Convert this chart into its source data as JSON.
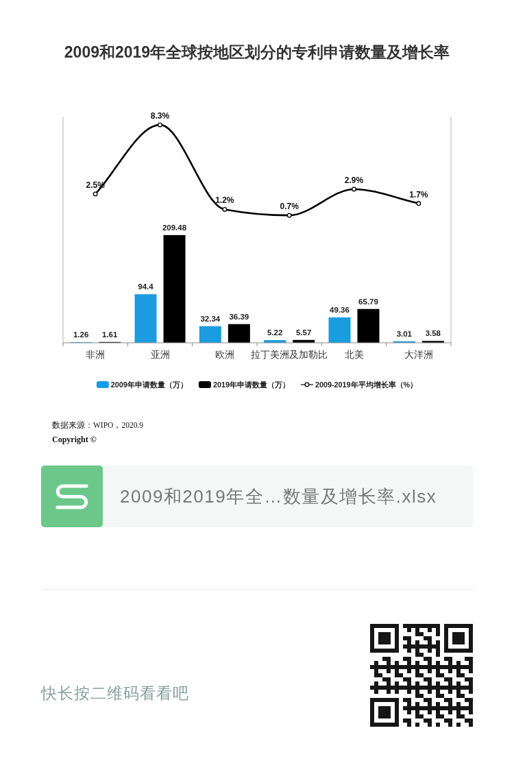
{
  "chart_data": {
    "type": "bar",
    "title": "2009和2019年全球按地区划分的专利申请数量及增长率",
    "categories": [
      "非洲",
      "亚洲",
      "欧洲",
      "拉丁美洲及加勒比",
      "北美",
      "大洋洲"
    ],
    "series": [
      {
        "name": "2009年申请数量（万）",
        "color": "#1a9de0",
        "values": [
          1.26,
          94.4,
          32.34,
          5.22,
          49.36,
          3.01
        ]
      },
      {
        "name": "2019年申请数量（万）",
        "color": "#000000",
        "values": [
          1.61,
          209.48,
          36.39,
          5.57,
          65.79,
          3.58
        ]
      },
      {
        "name": "2009-2019年平均增长率（%）",
        "type": "line",
        "axis": "y2",
        "color": "#000000",
        "marker": "circle",
        "values": [
          2.5,
          8.3,
          1.2,
          0.7,
          2.9,
          1.7
        ],
        "value_labels": [
          "2.5%",
          "8.3%",
          "1.2%",
          "0.7%",
          "2.9%",
          "1.7%"
        ]
      }
    ],
    "ylim": [
      0,
      440
    ],
    "y2lim": [
      -10,
      9
    ],
    "data_labels": true,
    "legend": "bottom",
    "annotations": [
      "数据来源：WIPO，2020.9",
      "Copyright ©",
      "2009和2019年全…数量及增长率.xlsx",
      "快长按二维码看看吧"
    ]
  }
}
